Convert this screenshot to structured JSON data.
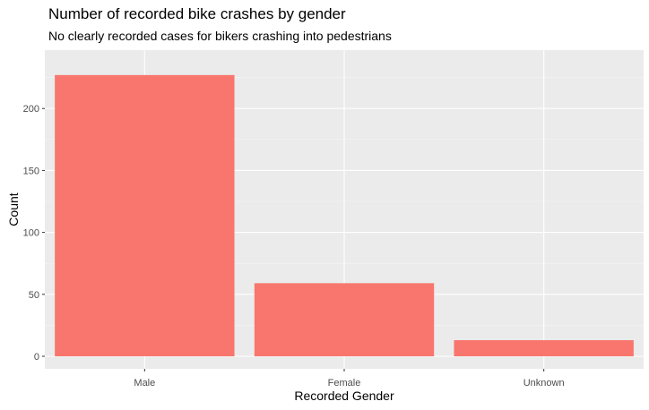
{
  "chart_data": {
    "type": "bar",
    "title": "Number of recorded bike crashes by gender",
    "subtitle": "No clearly recorded cases for bikers crashing into pedestrians",
    "xlabel": "Recorded Gender",
    "ylabel": "Count",
    "categories": [
      "Male",
      "Female",
      "Unknown"
    ],
    "values": [
      227,
      59,
      13
    ],
    "ylim": [
      0,
      237
    ],
    "yticks": [
      0,
      50,
      100,
      150,
      200
    ],
    "grid": true,
    "legend": "none",
    "colors": {
      "bar": "#F8766D",
      "panel": "#EBEBEB",
      "grid_major": "#FFFFFF",
      "axis_text": "#4D4D4D",
      "tick": "#333333"
    }
  }
}
